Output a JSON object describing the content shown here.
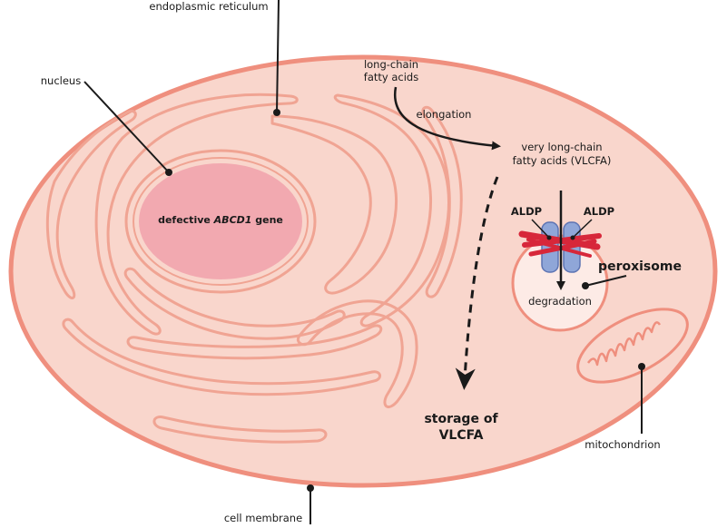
{
  "labels": {
    "endoplasmic_reticulum": "endoplasmic reticulum",
    "nucleus": "nucleus",
    "cell_membrane": "cell membrane",
    "mitochondrion": "mitochondrion",
    "peroxisome": "peroxisome",
    "degradation": "degradation",
    "aldp_left": "ALDP",
    "aldp_right": "ALDP",
    "lcfa_line1": "long-chain",
    "lcfa_line2": "fatty acids",
    "elongation": "elongation",
    "vlcfa_line1": "very long-chain",
    "vlcfa_line2": "fatty acids (VLCFA)",
    "storage_line1": "storage of",
    "storage_line2": "VLCFA",
    "gene_prefix": "defective ",
    "gene_name": "ABCD1",
    "gene_suffix": " gene"
  },
  "colors": {
    "cell_fill": "#f9d6cc",
    "cell_outline": "#ef8f7e",
    "er_stroke": "#f0a493",
    "nucleus_fill": "#f2a9b0",
    "peroxisome_fill": "#fdebe6",
    "transporter": "#8fa6d8",
    "defect_mark": "#d7273a",
    "arrow": "#1a1a1a"
  },
  "icons": {
    "defect_mark": "red-cross-scribble",
    "transporter": "aldp-transporter-icon"
  }
}
